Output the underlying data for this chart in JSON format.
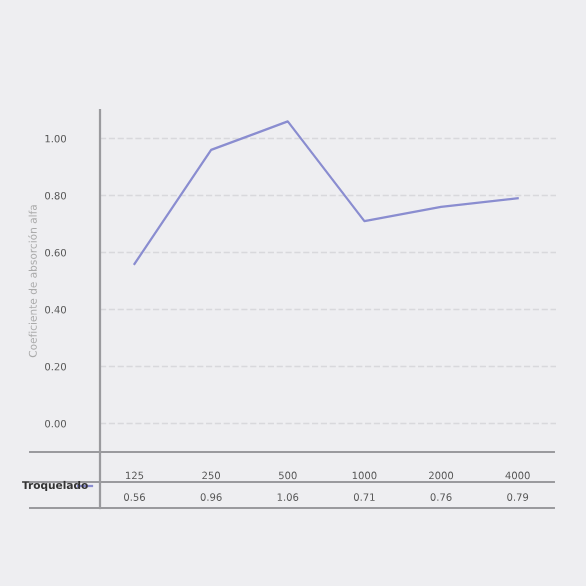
{
  "chart_data": {
    "type": "line",
    "ylabel": "Coeficiente de absorción alfa",
    "categories": [
      "125",
      "250",
      "500",
      "1000",
      "2000",
      "4000"
    ],
    "series": [
      {
        "name": "Troquelado",
        "color": "#8a8dd0",
        "values": [
          0.56,
          0.96,
          1.06,
          0.71,
          0.76,
          0.79
        ]
      }
    ],
    "ylim": [
      -0.1,
      1.1
    ],
    "yticks": [
      {
        "value": 0,
        "label": "0.00"
      },
      {
        "value": 0.2,
        "label": "0.20"
      },
      {
        "value": 0.4,
        "label": "0.40"
      },
      {
        "value": 0.6,
        "label": "0.60"
      },
      {
        "value": 0.8,
        "label": "0.80"
      },
      {
        "value": 1.0,
        "label": "1.00"
      }
    ],
    "grid": "y",
    "data_labels": true,
    "legend": "bottom left",
    "marker": "none",
    "line_style": "solid"
  }
}
